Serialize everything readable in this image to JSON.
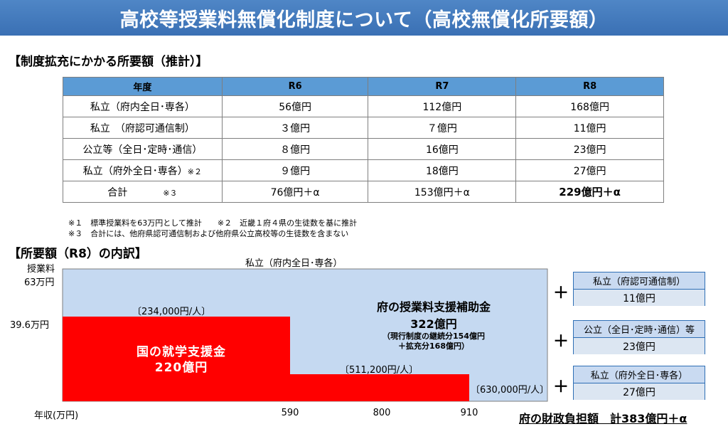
{
  "banner": {
    "title": "高校等授業料無償化制度について（高校無償化所要額）"
  },
  "section1": {
    "title": "【制度拡充にかかる所要額（推計）】"
  },
  "table": {
    "headers": [
      "年度",
      "R6",
      "R7",
      "R8"
    ],
    "rows": [
      {
        "label": "私立（府内全日･専各）",
        "note": "",
        "r6": "56億円",
        "r7": "112億円",
        "r8": "168億円",
        "bold": false
      },
      {
        "label": "私立　（府認可通信制）",
        "note": "",
        "r6": "３億円",
        "r7": "７億円",
        "r8": "11億円",
        "bold": false
      },
      {
        "label": "公立等（全日･定時･通信）",
        "note": "",
        "r6": "８億円",
        "r7": "16億円",
        "r8": "23億円",
        "bold": false
      },
      {
        "label": "私立（府外全日･専各）",
        "note": "※２",
        "r6": "９億円",
        "r7": "18億円",
        "r8": "27億円",
        "bold": false
      },
      {
        "label": "合計",
        "note": "※３",
        "r6": "76億円＋α",
        "r7": "153億円＋α",
        "r8": "229億円＋α",
        "bold": true
      }
    ]
  },
  "notes": {
    "n1": "※１　標準授業料を63万円として推計　　※２　近畿１府４県の生徒数を基に推計",
    "n2": "※３　合計には、他府県認可通信制および他府県公立高校等の生徒数を含まない"
  },
  "section2": {
    "title": "【所要額（R8）の内訳】"
  },
  "chart": {
    "y_label_line1": "授業料",
    "y_label_line2": "63万円",
    "y_mid_label": "39.6万円",
    "top_label": "私立（府内全日･専各）",
    "x_label": "年収(万円)",
    "x_ticks": [
      590,
      800,
      910
    ],
    "per_person_1": "〔234,000円/人〕",
    "per_person_2": "〔511,200円/人〕",
    "per_person_3": "〔630,000円/人〕",
    "red_label_1": "国の就学支援金",
    "red_label_2": "220億円",
    "blue_label_1": "府の授業料支援補助金",
    "blue_label_2": "322億円",
    "blue_label_3": "（現行制度の継続分154億円",
    "blue_label_4": "＋拡充分168億円）",
    "colors": {
      "blue_area": "#c5d9f1",
      "red_area": "#ff0000"
    }
  },
  "side": {
    "plus": "＋",
    "boxes": [
      {
        "label": "私立（府認可通信制）",
        "value": "11億円"
      },
      {
        "label": "公立（全日･定時･通信）等",
        "value": "23億円"
      },
      {
        "label": "私立（府外全日･専各）",
        "value": "27億円"
      }
    ]
  },
  "total": {
    "text": "府の財政負担額　計383億円＋α"
  }
}
